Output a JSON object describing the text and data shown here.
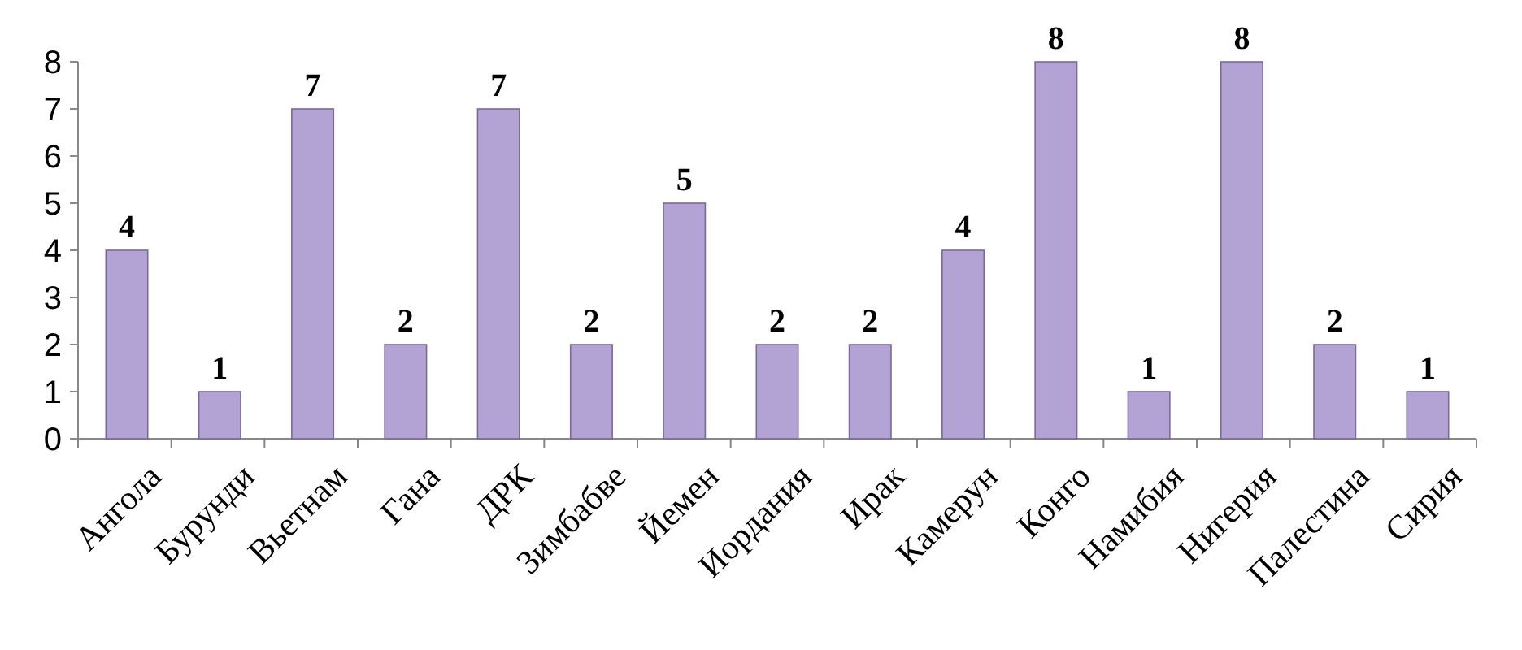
{
  "chart_data": {
    "type": "bar",
    "categories": [
      "Ангола",
      "Бурунди",
      "Вьетнам",
      "Гана",
      "ДРК",
      "Зимбабве",
      "Йемен",
      "Иордания",
      "Ирак",
      "Камерун",
      "Конго",
      "Намибия",
      "Нигерия",
      "Палестина",
      "Сирия"
    ],
    "values": [
      4,
      1,
      7,
      2,
      7,
      2,
      5,
      2,
      2,
      4,
      8,
      1,
      8,
      2,
      1
    ],
    "color": "#b3a2d4",
    "ylim": [
      0,
      8
    ],
    "yticks": [
      0,
      1,
      2,
      3,
      4,
      5,
      6,
      7,
      8
    ],
    "data_labels": true
  }
}
